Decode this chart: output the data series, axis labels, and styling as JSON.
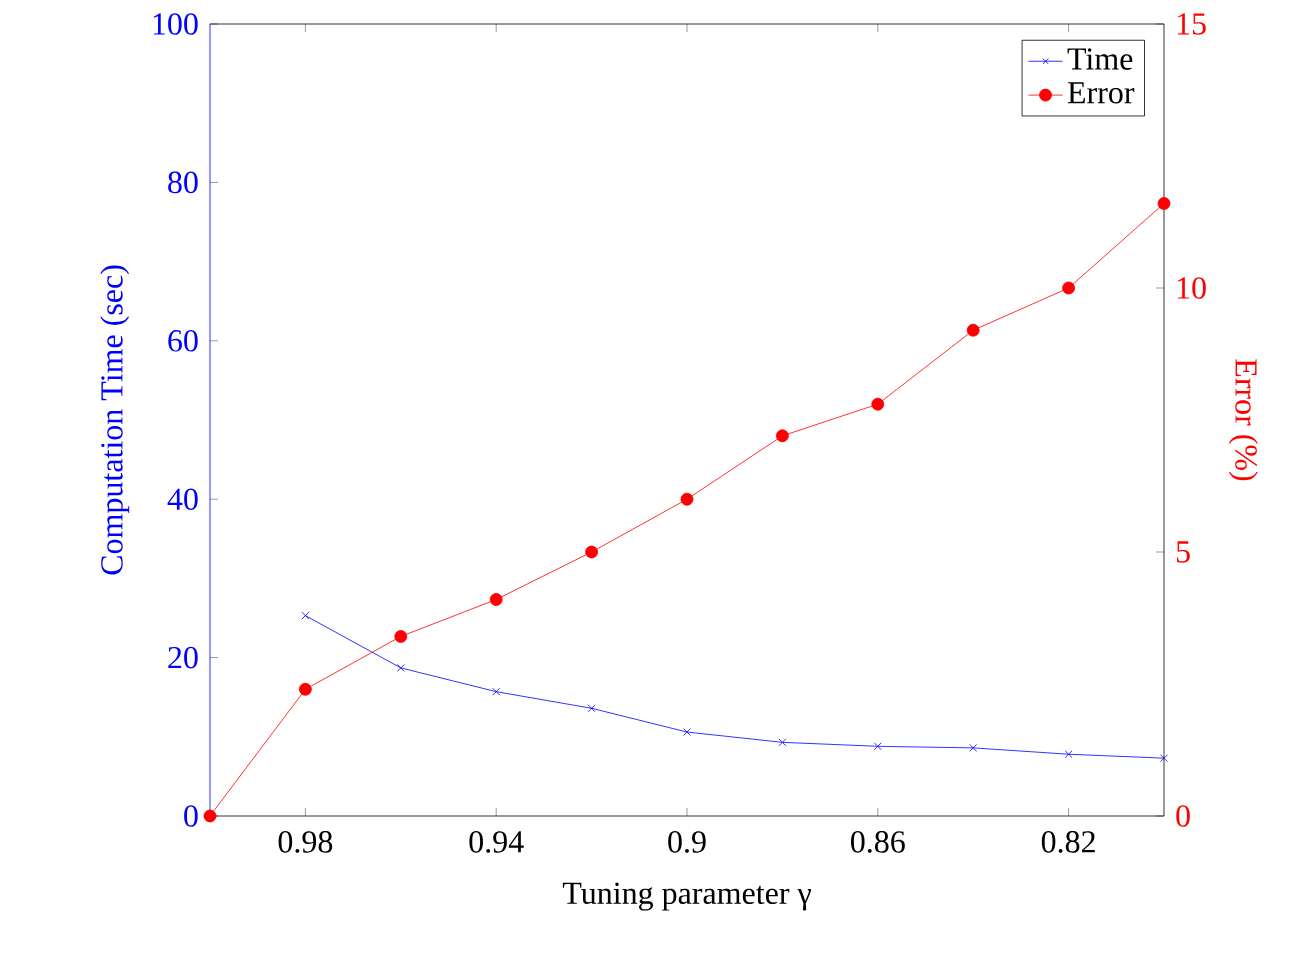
{
  "chart_data": {
    "type": "line",
    "xlabel": "Tuning parameter γ",
    "ylabel": "Computation Time (sec)",
    "y2label": "Error (%)",
    "x": [
      1.0,
      0.98,
      0.96,
      0.94,
      0.92,
      0.9,
      0.88,
      0.86,
      0.84,
      0.82,
      0.8
    ],
    "series": [
      {
        "name": "Time",
        "color": "#0000ff",
        "marker": "cross",
        "values": [
          null,
          25.3,
          18.7,
          15.7,
          13.6,
          10.6,
          9.3,
          8.8,
          8.6,
          7.8,
          7.3
        ]
      },
      {
        "name": "Error",
        "color": "#ff0000",
        "marker": "circle",
        "axis": "y2",
        "values": [
          0,
          2.4,
          3.4,
          4.1,
          5.0,
          6.0,
          7.2,
          7.8,
          9.2,
          10.0,
          11.6
        ]
      }
    ],
    "xlim": [
      1.0,
      0.8
    ],
    "xticks": [
      0.98,
      0.94,
      0.9,
      0.86,
      0.82
    ],
    "ylim": [
      0,
      100
    ],
    "yticks": [
      0,
      20,
      40,
      60,
      80,
      100
    ],
    "y2lim": [
      0,
      15
    ],
    "y2ticks": [
      0,
      5,
      10,
      15
    ],
    "legend": "top right",
    "grid": false
  }
}
